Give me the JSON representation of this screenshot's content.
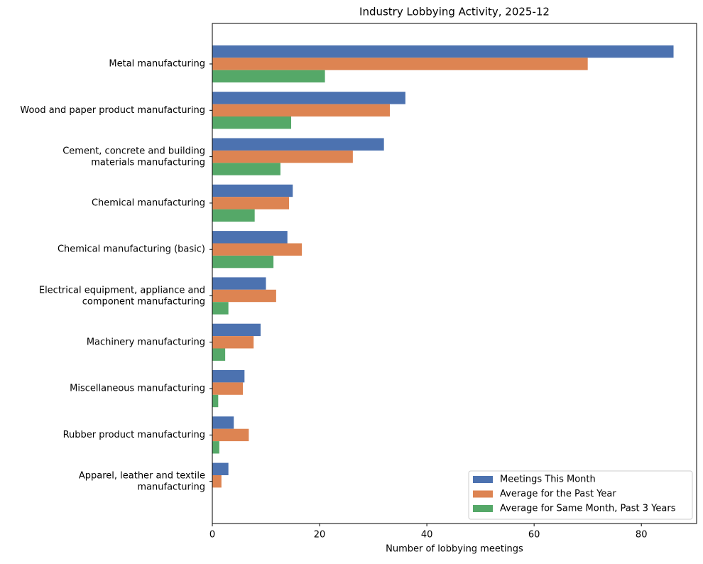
{
  "chart_data": {
    "type": "barh",
    "title": "Industry Lobbying Activity, 2025-12",
    "x_label": "Number of lobbying meetings",
    "categories": [
      "Metal manufacturing",
      "Wood and paper product manufacturing",
      "Cement, concrete and building\nmaterials manufacturing",
      "Chemical manufacturing",
      "Chemical manufacturing (basic)",
      "Electrical equipment, appliance and\ncomponent manufacturing",
      "Machinery manufacturing",
      "Miscellaneous manufacturing",
      "Rubber product manufacturing",
      "Apparel, leather and textile\nmanufacturing"
    ],
    "series": [
      {
        "name": "Meetings This Month",
        "color": "#4c72b0",
        "values": [
          86,
          36,
          32,
          15,
          14,
          10,
          9,
          6,
          4,
          3
        ]
      },
      {
        "name": "Average for the Past Year",
        "color": "#dd8452",
        "values": [
          70,
          33.1,
          26.2,
          14.3,
          16.7,
          11.9,
          7.7,
          5.7,
          6.8,
          1.7
        ]
      },
      {
        "name": "Average for Same Month, Past 3 Years",
        "color": "#55a868",
        "values": [
          21,
          14.7,
          12.7,
          7.9,
          11.4,
          3.0,
          2.4,
          1.1,
          1.3,
          0
        ]
      }
    ],
    "xlim": [
      0,
      90.3
    ],
    "xticks": [
      0,
      20,
      40,
      60,
      80
    ],
    "legend": "lower right"
  }
}
